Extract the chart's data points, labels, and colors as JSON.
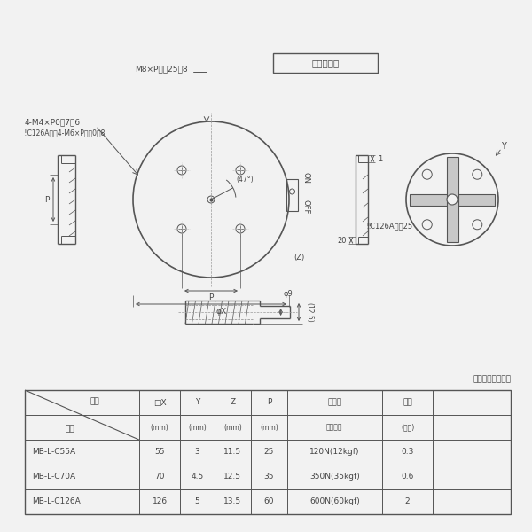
{
  "bg_color": "#f2f2f2",
  "line_color": "#555555",
  "text_color": "#444444",
  "title_box_text": "形状・仕様",
  "ann_m8": "M8×P１．25深8",
  "ann_4m4": "4-M4×P0．7深6",
  "ann_c126a": "‼C126Aのみ4-M6×P１．0深8",
  "ann_c126b": "‼C126Aのみ25",
  "ann_phi9": "φ9",
  "ann_125": "(12.5)",
  "ann_20": "20",
  "ann_1": "1",
  "ann_on": "ON",
  "ann_off": "OFF",
  "ann_47": "(47°)",
  "ann_phiX": "φX",
  "ann_P": "P",
  "ann_Z": "(Z)",
  "ann_Y": "Y",
  "material": "材質：ステンレス",
  "col_h1": [
    "□X",
    "Y",
    "Z",
    "P",
    "吸着力",
    "質量"
  ],
  "col_h2": [
    "(mm)",
    "(mm)",
    "(mm)",
    "(mm)",
    "図面表記",
    "(Ｋｇ)"
  ],
  "header_item": "項目",
  "header_form": "形式",
  "table_data": [
    [
      "MB-L-C55A",
      "55",
      "3",
      "11.5",
      "25",
      "120N(12kgf)",
      "0.3"
    ],
    [
      "MB-L-C70A",
      "70",
      "4.5",
      "12.5",
      "35",
      "350N(35kgf)",
      "0.6"
    ],
    [
      "MB-L-C126A",
      "126",
      "5",
      "13.5",
      "60",
      "600N(60kgf)",
      "2"
    ]
  ],
  "col_ratios": [
    0.235,
    0.085,
    0.07,
    0.075,
    0.075,
    0.195,
    0.105
  ]
}
